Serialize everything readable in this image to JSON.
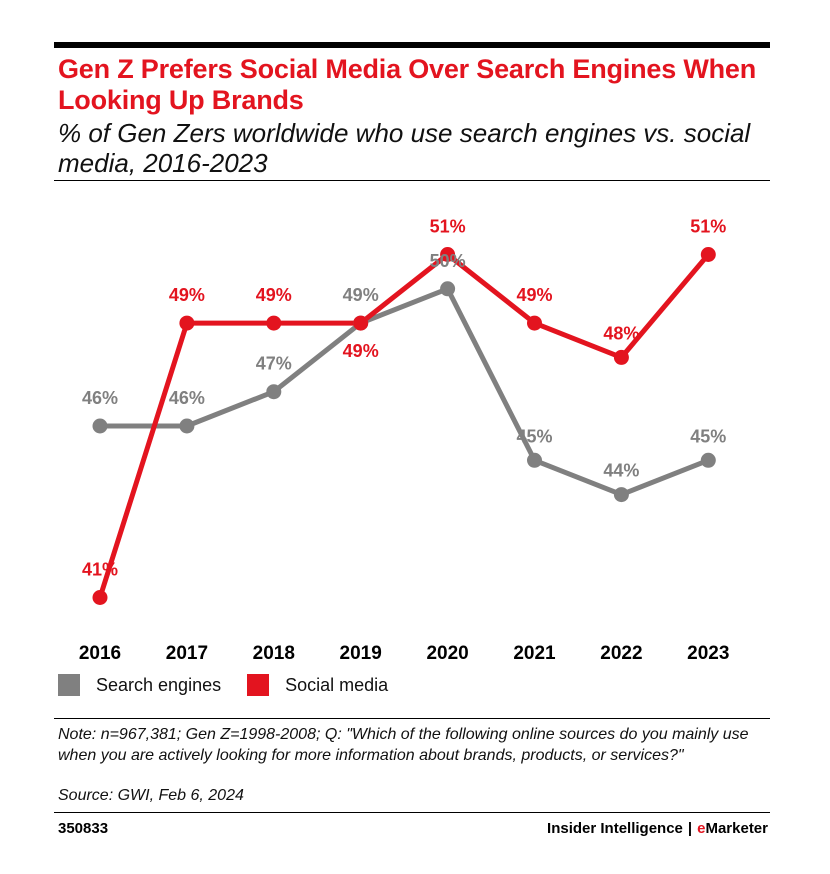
{
  "header": {
    "title": "Gen Z Prefers Social Media Over Search Engines When Looking Up Brands",
    "subtitle": "% of Gen Zers worldwide who use search engines vs. social media, 2016-2023"
  },
  "colors": {
    "accent": "#e3141f",
    "search": "#808080",
    "social": "#e3141f"
  },
  "legend": {
    "items": [
      "Search engines",
      "Social media"
    ]
  },
  "chart_data": {
    "type": "line",
    "x": [
      "2016",
      "2017",
      "2018",
      "2019",
      "2020",
      "2021",
      "2022",
      "2023"
    ],
    "series": [
      {
        "name": "Search engines",
        "values": [
          46,
          46,
          47,
          49,
          50,
          45,
          44,
          45
        ],
        "labels": [
          "46%",
          "46%",
          "47%",
          "49%",
          "50%",
          "45%",
          "44%",
          "45%"
        ]
      },
      {
        "name": "Social media",
        "values": [
          41,
          49,
          49,
          49,
          51,
          49,
          48,
          51
        ],
        "labels": [
          "41%",
          "49%",
          "49%",
          "49%",
          "51%",
          "49%",
          "48%",
          "51%"
        ]
      }
    ],
    "grid": false,
    "legend_position": "bottom-left"
  },
  "footer": {
    "note": "Note: n=967,381; Gen Z=1998-2008; Q: \"Which of the following online sources do you mainly use when you are actively looking for more information about brands, products, or services?\"",
    "source": "Source: GWI, Feb 6, 2024",
    "chart_id": "350833",
    "brand_left": "Insider Intelligence",
    "brand_sep": "|",
    "brand_e": "e",
    "brand_rest": "Marketer"
  }
}
